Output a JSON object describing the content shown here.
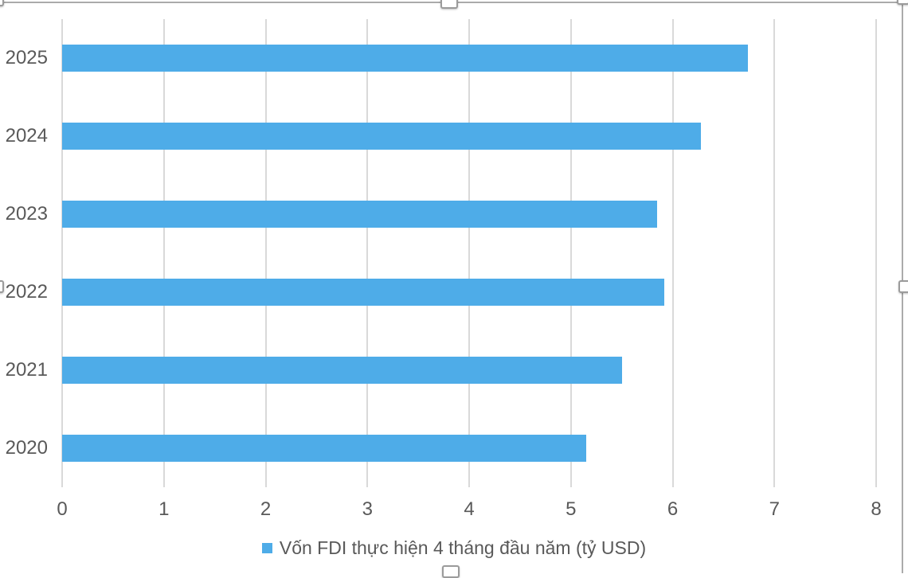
{
  "chart_data": {
    "type": "bar",
    "orientation": "horizontal",
    "title": "",
    "categories": [
      "2025",
      "2024",
      "2023",
      "2022",
      "2021",
      "2020"
    ],
    "values": [
      6.74,
      6.28,
      5.85,
      5.92,
      5.5,
      5.15
    ],
    "series_name": "Vốn FDI thực hiện 4 tháng đầu năm (tỷ USD)",
    "xlim": [
      0,
      8
    ],
    "x_ticks": [
      "0",
      "1",
      "2",
      "3",
      "4",
      "5",
      "6",
      "7",
      "8"
    ],
    "grid": "vertical-gridlines-on",
    "legend_position": "bottom-center",
    "bar_color": "#4eace8",
    "axis_text_color": "#595959",
    "gridline_color": "#d9d9d9"
  },
  "legend": {
    "marker": "square-swatch"
  }
}
